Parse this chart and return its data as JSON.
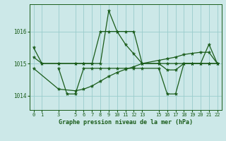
{
  "background_color": "#cce8e8",
  "grid_color": "#99cccc",
  "line_color": "#1a5c1a",
  "title": "Graphe pression niveau de la mer (hPa)",
  "xlabel_hours": [
    0,
    1,
    3,
    5,
    6,
    7,
    8,
    9,
    10,
    11,
    12,
    13,
    15,
    16,
    17,
    18,
    19,
    20,
    21,
    22
  ],
  "yticks": [
    1014,
    1015,
    1016
  ],
  "ylim": [
    1013.55,
    1016.85
  ],
  "xlim": [
    -0.5,
    22.5
  ],
  "series1_x": [
    0,
    1,
    3,
    5,
    6,
    7,
    8,
    9,
    10,
    11,
    12,
    13,
    15,
    16,
    17,
    18,
    19,
    20,
    21,
    22
  ],
  "series1_y": [
    1015.2,
    1015.0,
    1015.0,
    1015.0,
    1015.0,
    1015.0,
    1016.0,
    1016.0,
    1016.0,
    1016.0,
    1016.0,
    1015.0,
    1015.0,
    1015.0,
    1015.0,
    1015.0,
    1015.0,
    1015.0,
    1015.0,
    1015.0
  ],
  "series2_x": [
    0,
    1,
    3,
    5,
    6,
    7,
    8,
    9,
    10,
    11,
    12,
    13,
    15,
    16,
    17,
    18,
    19,
    20,
    21,
    22
  ],
  "series2_y": [
    1015.5,
    1015.0,
    1015.0,
    1015.0,
    1015.0,
    1015.0,
    1015.0,
    1016.65,
    1016.0,
    1015.6,
    1015.3,
    1015.0,
    1015.0,
    1014.8,
    1014.8,
    1015.0,
    1015.0,
    1015.0,
    1015.6,
    1015.0
  ],
  "series3_x": [
    0,
    3,
    5,
    6,
    7,
    8,
    9,
    10,
    11,
    12,
    13,
    15,
    16,
    17,
    18,
    19,
    20,
    21,
    22
  ],
  "series3_y": [
    1014.85,
    1014.2,
    1014.15,
    1014.2,
    1014.3,
    1014.45,
    1014.6,
    1014.72,
    1014.82,
    1014.9,
    1015.0,
    1015.1,
    1015.15,
    1015.2,
    1015.28,
    1015.32,
    1015.35,
    1015.35,
    1015.0
  ],
  "series4_x": [
    3,
    4,
    5,
    6,
    7,
    8,
    9,
    10,
    11,
    12,
    13,
    15,
    16,
    17,
    18,
    19,
    20,
    21,
    22
  ],
  "series4_y": [
    1014.85,
    1014.05,
    1014.05,
    1014.85,
    1014.85,
    1014.85,
    1014.85,
    1014.85,
    1014.85,
    1014.85,
    1014.85,
    1014.85,
    1014.05,
    1014.05,
    1015.0,
    1015.0,
    1015.0,
    1015.0,
    1015.0
  ]
}
